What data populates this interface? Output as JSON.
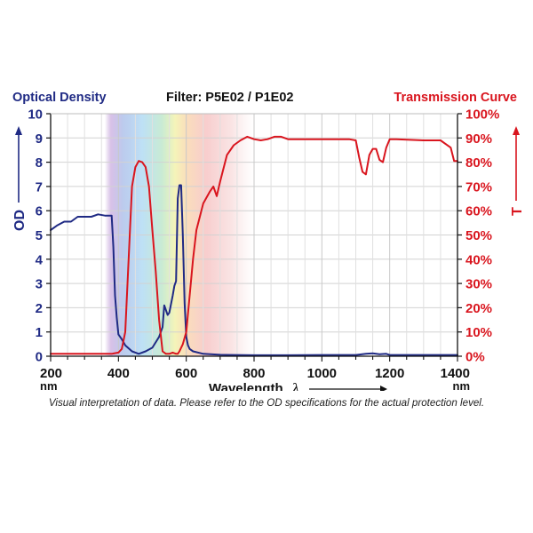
{
  "chart_data": {
    "type": "line",
    "title": "Filter: P5E02 / P1E02",
    "left_axis": {
      "header": "Optical Density",
      "label": "OD",
      "range": [
        0,
        10
      ],
      "ticks": [
        0,
        1,
        2,
        3,
        4,
        5,
        6,
        7,
        8,
        9,
        10
      ],
      "color": "#1f2a84"
    },
    "right_axis": {
      "header": "Transmission Curve",
      "label": "T",
      "range": [
        0,
        100
      ],
      "unit": "%",
      "tick_labels": [
        "0%",
        "10%",
        "20%",
        "30%",
        "40%",
        "50%",
        "60%",
        "70%",
        "80%",
        "90%",
        "100%"
      ],
      "color": "#d9151e"
    },
    "x_axis": {
      "label": "Wavelength",
      "symbol": "λ",
      "unit_label": "nm",
      "range": [
        200,
        1400
      ],
      "ticks": [
        200,
        400,
        600,
        800,
        1000,
        1200,
        1400
      ]
    },
    "grid": true,
    "visible_spectrum_band": [
      360,
      800
    ],
    "series": [
      {
        "id": "od",
        "axis": "left",
        "color": "#1f2a84",
        "x": [
          200,
          220,
          240,
          260,
          280,
          300,
          320,
          340,
          360,
          380,
          385,
          390,
          395,
          400,
          410,
          420,
          440,
          460,
          480,
          500,
          520,
          530,
          535,
          540,
          545,
          550,
          560,
          565,
          570,
          575,
          580,
          585,
          590,
          595,
          600,
          605,
          610,
          620,
          650,
          700,
          800,
          900,
          1000,
          1100,
          1130,
          1150,
          1170,
          1190,
          1200,
          1250,
          1300,
          1400
        ],
        "y": [
          5.2,
          5.4,
          5.55,
          5.55,
          5.75,
          5.75,
          5.75,
          5.85,
          5.8,
          5.8,
          4.5,
          2.5,
          1.6,
          0.9,
          0.7,
          0.45,
          0.2,
          0.1,
          0.2,
          0.35,
          0.8,
          1.2,
          2.1,
          1.9,
          1.7,
          1.8,
          2.5,
          2.9,
          3.1,
          6.5,
          7.05,
          7.05,
          5.0,
          2.2,
          0.8,
          0.45,
          0.3,
          0.2,
          0.1,
          0.06,
          0.04,
          0.04,
          0.05,
          0.05,
          0.1,
          0.12,
          0.08,
          0.1,
          0.05,
          0.05,
          0.05,
          0.05
        ]
      },
      {
        "id": "transmission",
        "axis": "right",
        "color": "#d9151e",
        "x": [
          200,
          360,
          380,
          400,
          410,
          420,
          430,
          440,
          450,
          460,
          470,
          480,
          490,
          500,
          510,
          520,
          530,
          540,
          550,
          560,
          570,
          575,
          580,
          590,
          600,
          610,
          620,
          630,
          650,
          670,
          680,
          690,
          700,
          720,
          740,
          760,
          780,
          800,
          820,
          840,
          860,
          880,
          900,
          950,
          1000,
          1050,
          1080,
          1100,
          1110,
          1120,
          1130,
          1140,
          1150,
          1160,
          1170,
          1180,
          1190,
          1200,
          1210,
          1220,
          1300,
          1350,
          1380,
          1390,
          1400
        ],
        "y": [
          1,
          1,
          1,
          1.5,
          3,
          10,
          40,
          70,
          78,
          80.5,
          80,
          78,
          70,
          52,
          35,
          15,
          2,
          1,
          1,
          1.5,
          1,
          1,
          2,
          5,
          10,
          25,
          40,
          52,
          63,
          68,
          70,
          66,
          72,
          83,
          87,
          89,
          90.5,
          89.5,
          89,
          89.5,
          90.5,
          90.5,
          89.5,
          89.5,
          89.5,
          89.5,
          89.5,
          89,
          82,
          76,
          75,
          83,
          85.5,
          85.5,
          81,
          80,
          86,
          89.5,
          89.5,
          89.5,
          89,
          89,
          86,
          80.5,
          80.5
        ]
      }
    ]
  },
  "footnote": "Visual interpretation of data. Please refer to the OD specifications for the actual protection level."
}
